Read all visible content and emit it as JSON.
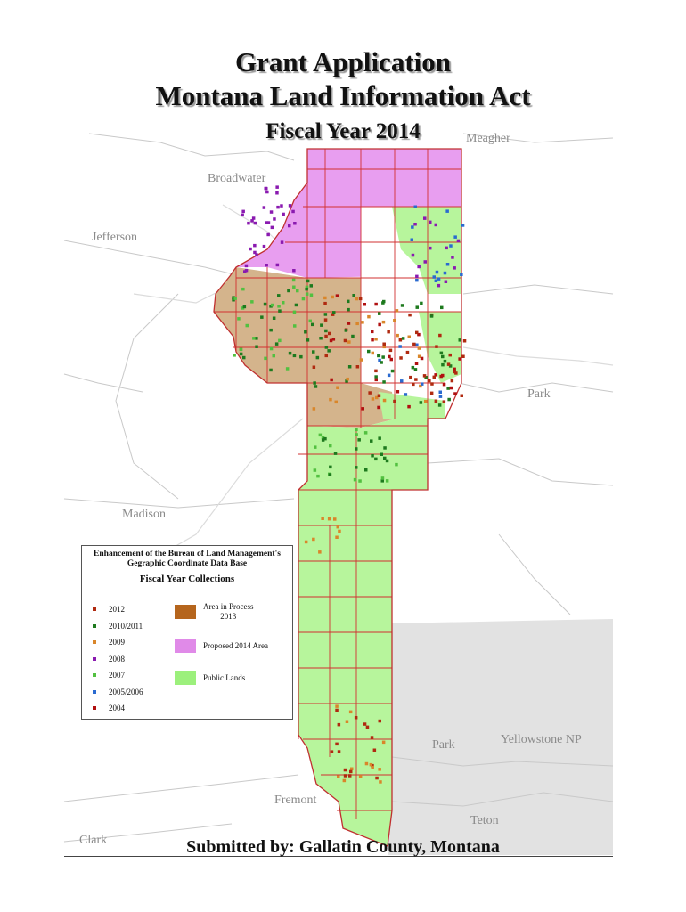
{
  "title": {
    "line1": "Grant Application",
    "line2": "Montana Land Information Act",
    "line3": "Fiscal Year 2014"
  },
  "places": {
    "meagher": "Meagher",
    "broadwater": "Broadwater",
    "jefferson": "Jefferson",
    "park_east": "Park",
    "madison": "Madison",
    "park_south": "Park",
    "yellowstone": "Yellowstone NP",
    "fremont": "Fremont",
    "teton": "Teton",
    "clark": "Clark"
  },
  "legend": {
    "heading_line1": "Enhancement of the Bureau of Land Management's",
    "heading_line2": "Gegraphic Coordinate Data Base",
    "subheading": "Fiscal Year Collections",
    "years": [
      {
        "label": "2012",
        "color": "#b02a10"
      },
      {
        "label": "2010/2011",
        "color": "#1e7a1e"
      },
      {
        "label": "2009",
        "color": "#d9862a"
      },
      {
        "label": "2008",
        "color": "#8a1ab0"
      },
      {
        "label": "2007",
        "color": "#52c040"
      },
      {
        "label": "2005/2006",
        "color": "#2a6ad0"
      },
      {
        "label": "2004",
        "color": "#b01010"
      }
    ],
    "areas": [
      {
        "label_line1": "Area in Process",
        "label_line2": "2013",
        "color": "#b5651d"
      },
      {
        "label_line1": "Proposed 2014 Area",
        "label_line2": "",
        "color": "#e08ae8"
      },
      {
        "label_line1": "Public Lands",
        "label_line2": "",
        "color": "#9cf07c"
      }
    ]
  },
  "colors": {
    "proposed": "#e89ef0",
    "in_process": "#d4b48c",
    "public_lands": "#b7f59c",
    "grid": "#d23030",
    "yellowstone_fill": "#e2e2e2"
  },
  "footer": "Submitted by:  Gallatin County, Montana"
}
